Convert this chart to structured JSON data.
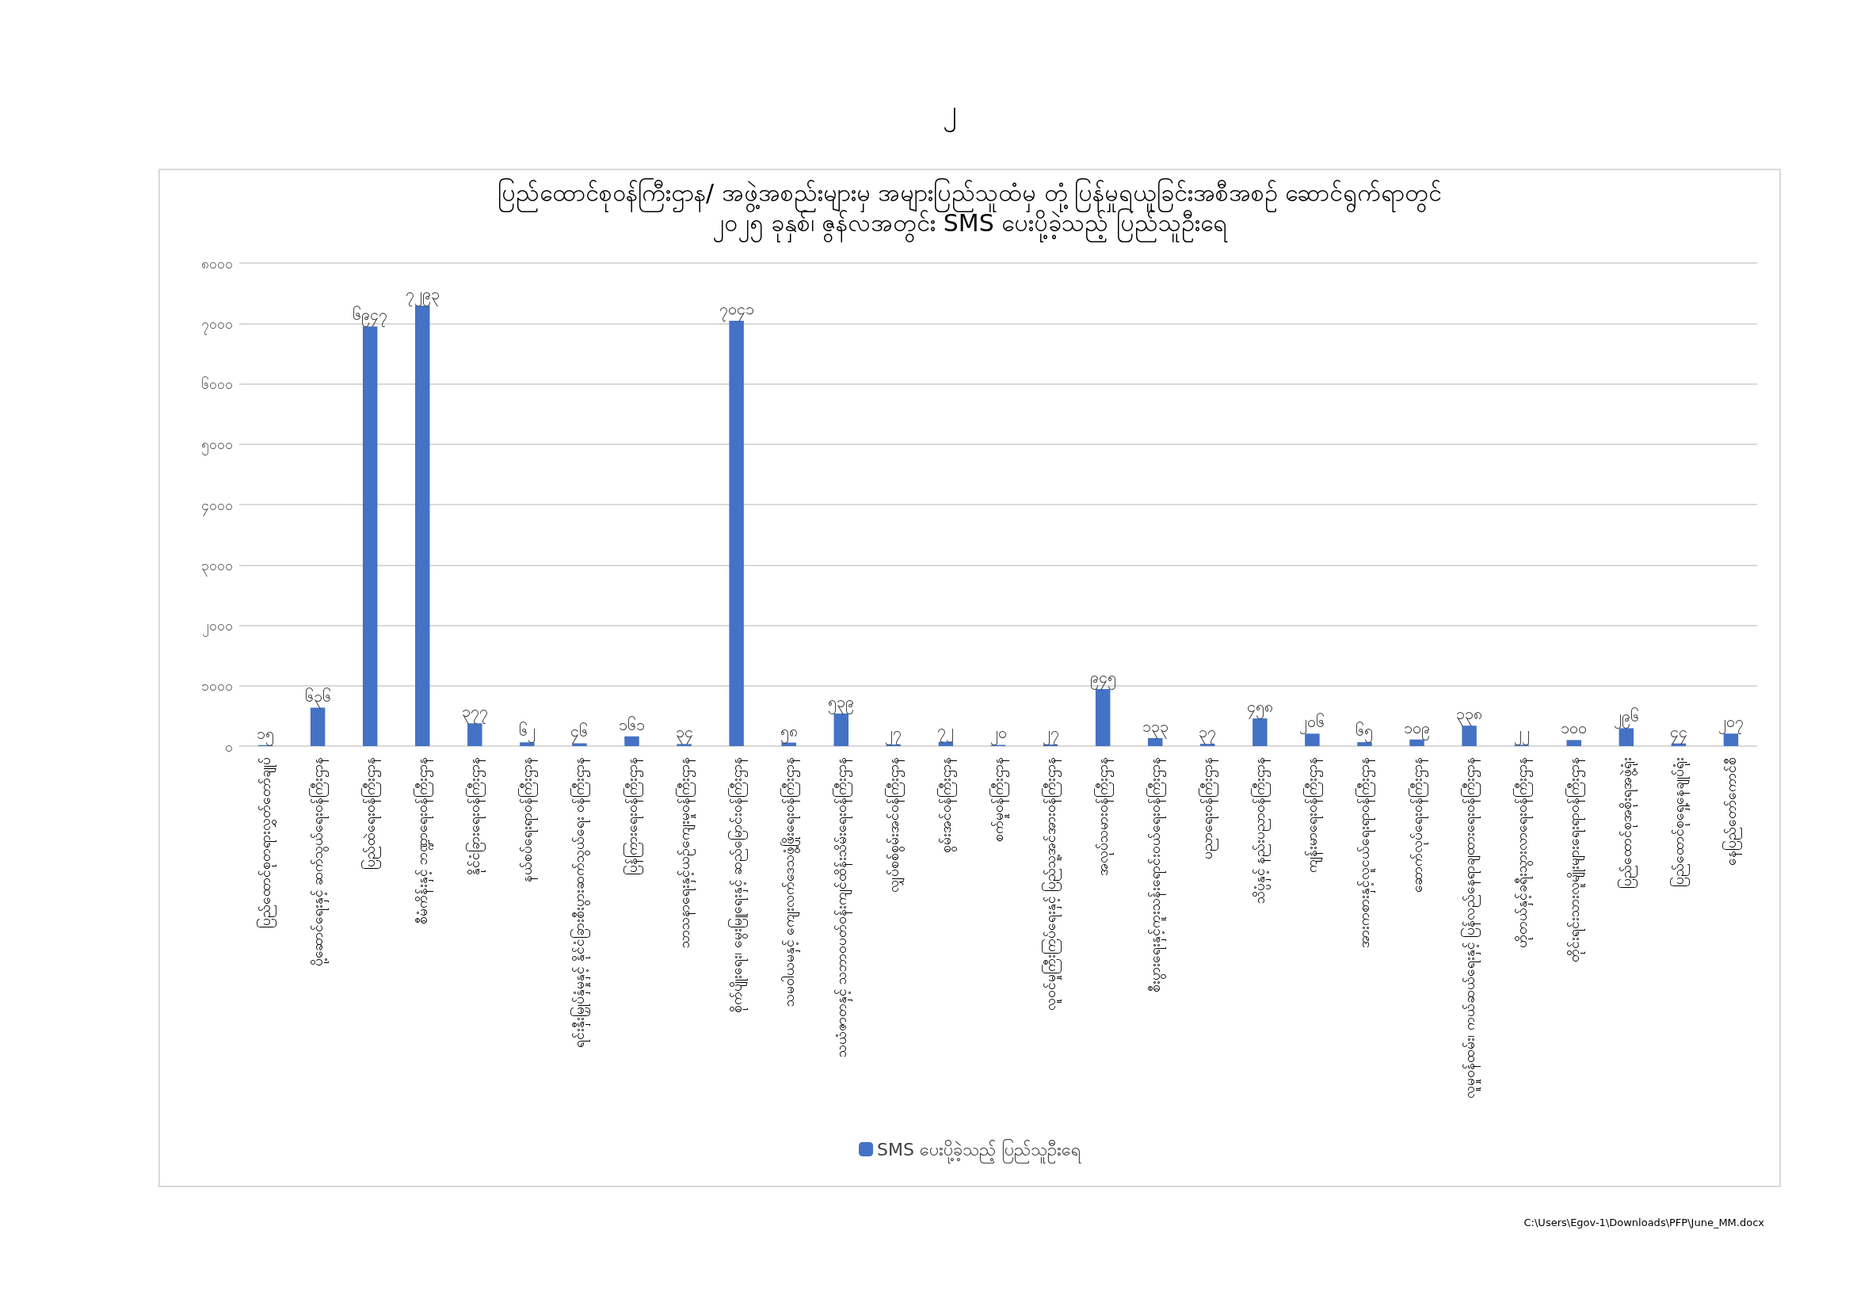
{
  "chart_data": {
    "type": "bar",
    "title": "ပြည်ထောင်စုဝန်ကြီးဌာန/ အဖွဲ့အစည်းများမှ အများပြည်သူထံမှ တုံ့ပြန်မှုရယူခြင်းအစီအစဉ် ဆောင်ရွက်ရာတွင်",
    "subtitle": "၂၀၂၅ ခုနှစ်၊ ဇွန်လအတွင်း SMS ပေးပို့ခဲ့သည့် ပြည်သူဦးရေ",
    "categories": [
      "ပြည်ထောင်စုတရားလွှတ်တော်ချုပ်",
      "ပို့ဆောင်ရေးနှင့် ဆက်သွယ်ရေးဝန်ကြီးဌာန",
      "ပြည်ထဲရေးဝန်ကြီးဌာန",
      "စီမံကိန်းနှင့် ဘဏ္ဍာရေးဝန်ကြီးဌာန",
      "နိုင်ငံခြားရေးဝန်ကြီးဌာန",
      "နယ်စပ်ရေးရာဝန်ကြီးဌာန",
      "ရင်းနှီးမြှုပ်နှံမှုနှင့် နိုင်ငံခြားစီးပွားဆက်သွယ်ရေး ဝန်ကြီးဌာန",
      "ပြန်ကြားရေးဝန်ကြီးဌာန",
      "သာသနာရေးနှင့်ယဉ်ကျေးမှုဝန်ကြီးဌာန",
      "စိုက်ပျိုးရေး၊ မွေးမြူရေးနှင့် ဆည်မြောင်းဝန်ကြီးဌာန",
      "သမဝါယမနှင့် ကျေးလက်ဒေသဖွံ့ဖြိုးရေးဝန်ကြီးဌာန",
      "သယံဇာတနှင့် သဘာဝပတ်ဝန်းကျင်ထိန်းသိမ်းရေးဝန်ကြီးဌာန",
      "လျှပ်စစ်စွမ်းအင်ဝန်ကြီးဌာန",
      "စွမ်းအင်ဝန်ကြီးဌာန",
      "စက်မှုဝန်ကြီးဌာန",
      "လူဝင်မှုကြီးကြပ်ရေးနှင့် ပြည်သူ့အင်အားဝန်ကြီးဌာန",
      "အလုပ်သမားဝန်ကြီးဌာန",
      "စီးပွားရေးနှင့်ကူးသန်းရောင်းဝယ်ရေးဝန်ကြီးဌာန",
      "ပညာရေးဝန်ကြီးဌာန",
      "သိပ္ပံနှင့် နည်းပညာဝန်ကြီးဌာန",
      "ကျန်းမာရေးဝန်ကြီးဌာန",
      "အားကစားနှင့်လူငယ်ရေးရာဝန်ကြီးဌာန",
      "ဆောက်လုပ်ရေးဝန်ကြီးဌာန",
      "လူမှုဝန်ထမ်း၊ ကယ်ဆယ်ရေးနှင့် ပြန်လည်နေရာချထားရေးဝန်ကြီးဌာန",
      "ဟိုတယ်နှင့်ခရီးသွားလာရေးဝန်ကြီးဌာန",
      "တိုင်းရင်းသားလူမျိုးများရေးရာဝန်ကြီးဌာန",
      "ပြည်ထောင်စုအစိုးရအဖွဲ့ရုံး",
      "ပြည်ထောင်စုရှေ့နေချုပ်ရုံး",
      "နေပြည်တော်ကောင်စီ"
    ],
    "series": [
      {
        "name": "SMS ပေးပို့ခဲ့သည့် ပြည်သူဦးရေ",
        "color": "#4472c4",
        "values": [
          15,
          636,
          6947,
          7293,
          377,
          62,
          46,
          161,
          34,
          7041,
          58,
          539,
          27,
          72,
          20,
          27,
          945,
          133,
          37,
          458,
          206,
          65,
          109,
          338,
          22,
          100,
          296,
          44,
          207
        ],
        "value_labels": [
          "၁၅",
          "၆၃၆",
          "၆၉၄၇",
          "၇၂၉၃",
          "၃၇၇",
          "၆၂",
          "၄၆",
          "၁၆၁",
          "၃၄",
          "၇၀၄၁",
          "၅၈",
          "၅၃၉",
          "၂၇",
          "၇၂",
          "၂၀",
          "၂၇",
          "၉၄၅",
          "၁၃၃",
          "၃၇",
          "၄၅၈",
          "၂၀၆",
          "၆၅",
          "၁၀၉",
          "၃၃၈",
          "၂၂",
          "၁၀၀",
          "၂၉၆",
          "၄၄",
          "၂၀၇"
        ]
      }
    ],
    "ylim": [
      0,
      8000
    ],
    "yticks": [
      {
        "value": 0,
        "label": "၀"
      },
      {
        "value": 1000,
        "label": "၁၀၀၀"
      },
      {
        "value": 2000,
        "label": "၂၀၀၀"
      },
      {
        "value": 3000,
        "label": "၃၀၀၀"
      },
      {
        "value": 4000,
        "label": "၄၀၀၀"
      },
      {
        "value": 5000,
        "label": "၅၀၀၀"
      },
      {
        "value": 6000,
        "label": "၆၀၀၀"
      },
      {
        "value": 7000,
        "label": "၇၀၀၀"
      },
      {
        "value": 8000,
        "label": "၈၀၀၀"
      }
    ],
    "grid": "y",
    "legend": "bottom",
    "annotations": [
      "၂",
      "C:\\Users\\Egov-1\\Downloads\\PFP\\June_MM.docx"
    ]
  }
}
